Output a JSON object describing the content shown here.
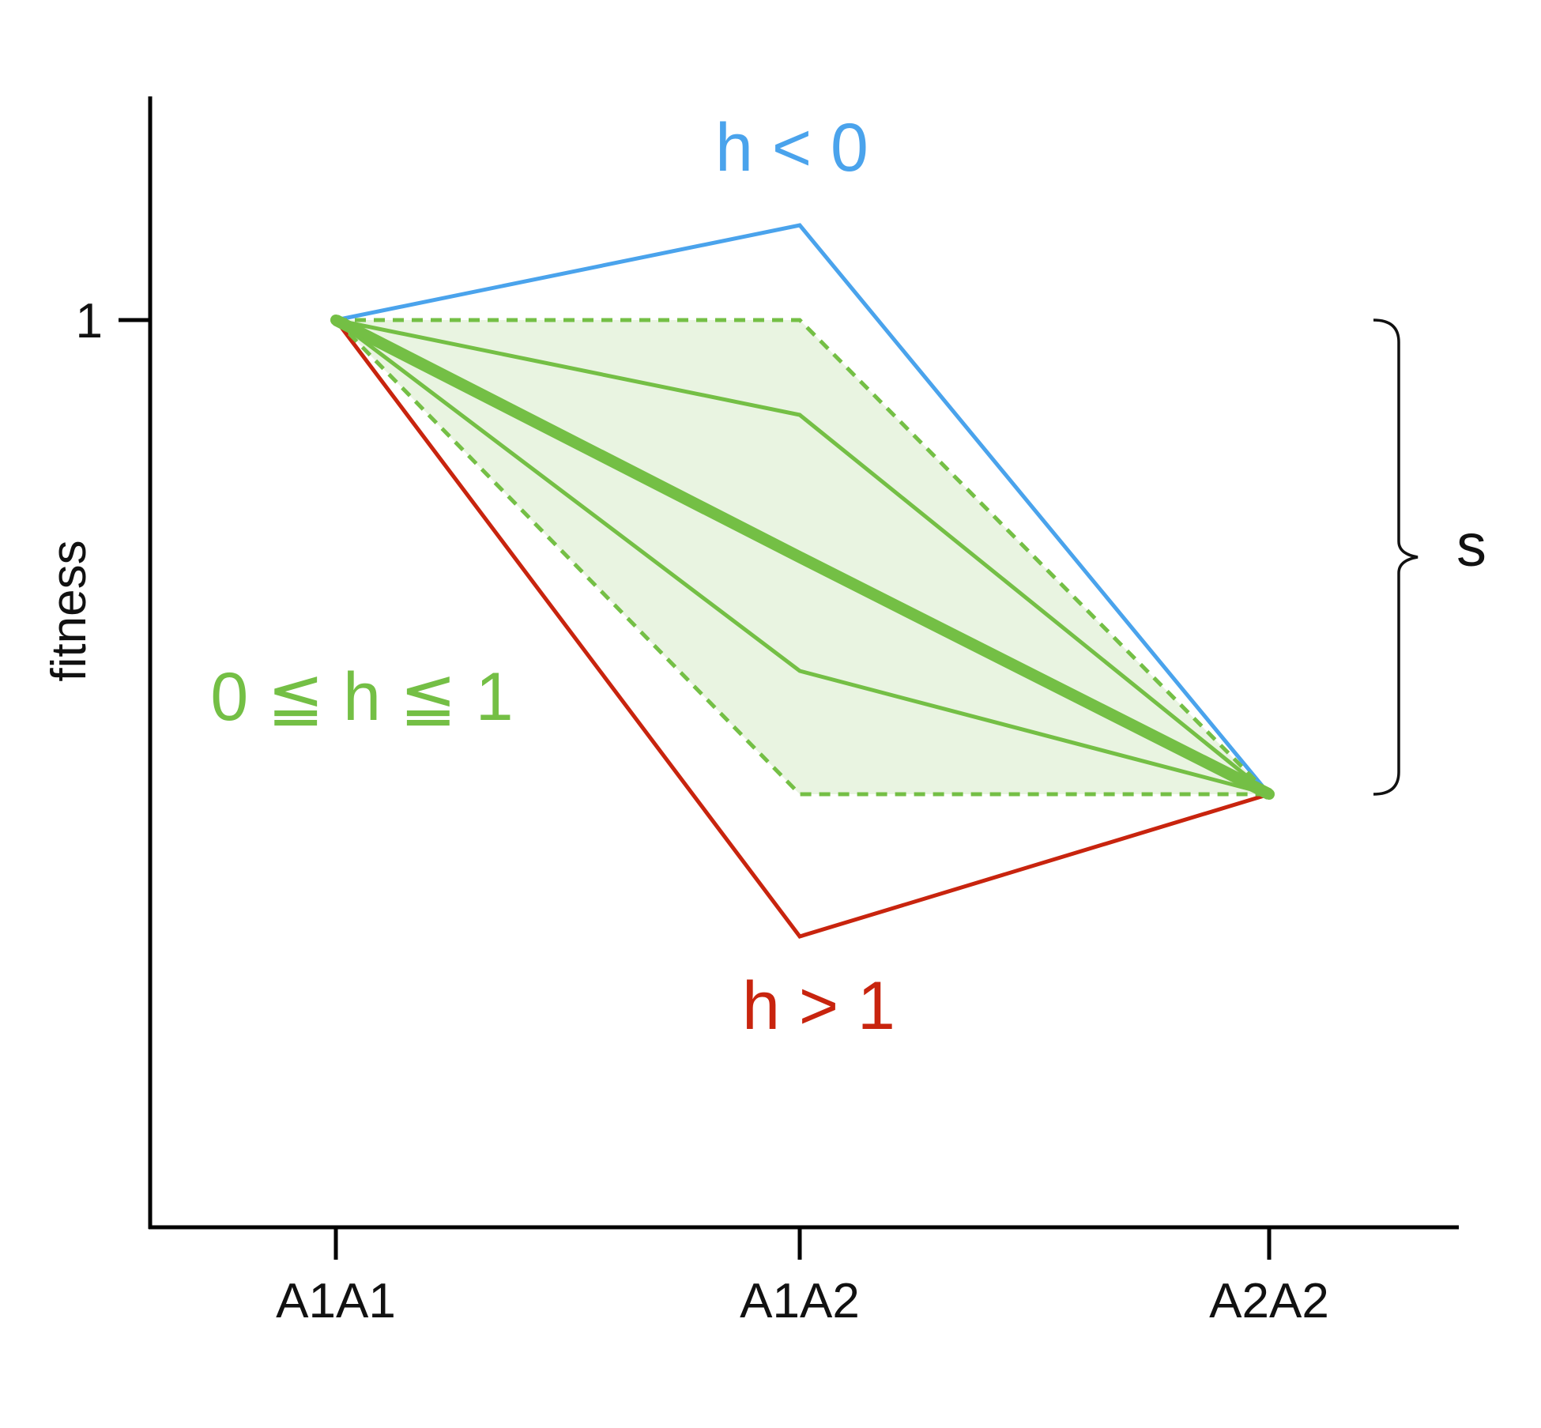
{
  "chart_data": {
    "type": "line",
    "ylabel": "fitness",
    "xlabel": "",
    "categories": [
      "A1A1",
      "A1A2",
      "A2A2"
    ],
    "yticks": [
      {
        "value": 1,
        "label": "1"
      }
    ],
    "ylim": [
      0.3,
      1.35
    ],
    "series": [
      {
        "name": "h < 0",
        "color": "#4aa3ec",
        "values": [
          1.0,
          1.1,
          0.5
        ],
        "style": "solid"
      },
      {
        "name": "h > 1",
        "color": "#c8240e",
        "values": [
          1.0,
          0.35,
          0.5
        ],
        "style": "solid"
      },
      {
        "name": "0 ≤ h ≤ 1",
        "color": "#74bf45",
        "values": [
          1.0,
          1.0,
          0.5
        ],
        "style": "dashed",
        "role": "h = 0"
      },
      {
        "name": "0 ≤ h ≤ 1",
        "color": "#74bf45",
        "values": [
          1.0,
          0.9,
          0.5
        ],
        "style": "solid",
        "role": "intermediate"
      },
      {
        "name": "0 ≤ h ≤ 1",
        "color": "#74bf45",
        "values": [
          1.0,
          0.75,
          0.5
        ],
        "style": "thick",
        "role": "h = 0.5"
      },
      {
        "name": "0 ≤ h ≤ 1",
        "color": "#74bf45",
        "values": [
          1.0,
          0.63,
          0.5
        ],
        "style": "solid",
        "role": "intermediate"
      },
      {
        "name": "0 ≤ h ≤ 1",
        "color": "#74bf45",
        "values": [
          1.0,
          0.5,
          0.5
        ],
        "style": "dashed",
        "role": "h = 1"
      }
    ],
    "shaded_region": {
      "color": "#e9f4e1",
      "upper": [
        1.0,
        1.0,
        0.5
      ],
      "lower": [
        1.0,
        0.5,
        0.5
      ]
    },
    "annotations": {
      "blue_label": "h < 0",
      "red_label": "h > 1",
      "green_label": "0 ≦ h ≦ 1",
      "brace_label": "s",
      "brace_range": [
        0.5,
        1.0
      ]
    },
    "grid": false,
    "legend": "none"
  }
}
